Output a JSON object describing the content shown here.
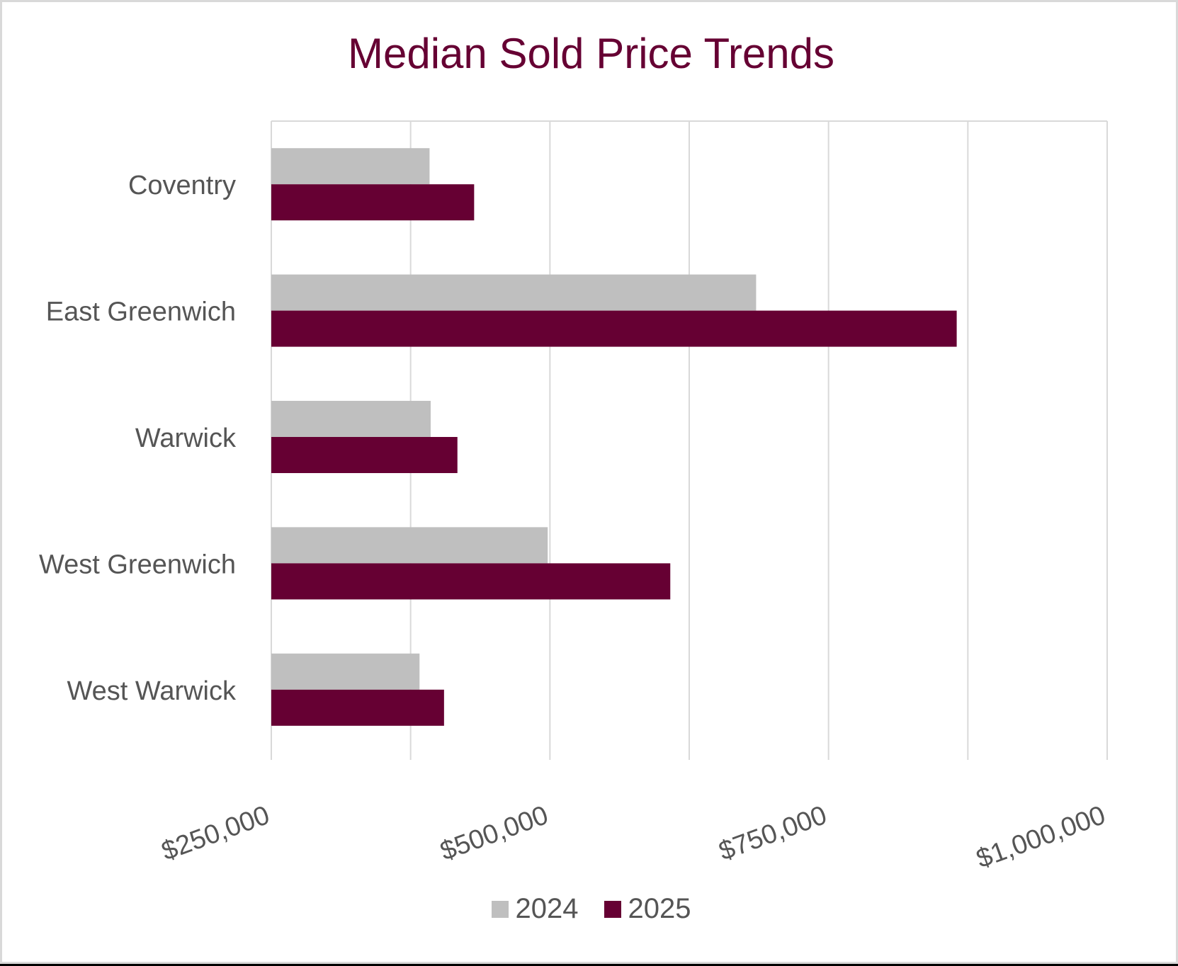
{
  "chart_data": {
    "type": "bar",
    "orientation": "horizontal",
    "title": "Median Sold Price Trends",
    "xlabel": "",
    "ylabel": "",
    "categories": [
      "Coventry",
      "East Greenwich",
      "Warwick",
      "West Greenwich",
      "West Warwick"
    ],
    "series": [
      {
        "name": "2024",
        "color": "#bfbfbf",
        "values": [
          392000,
          685000,
          393000,
          498000,
          383000
        ]
      },
      {
        "name": "2025",
        "color": "#660033",
        "values": [
          432000,
          865000,
          417000,
          608000,
          405000
        ]
      }
    ],
    "xlim": [
      250000,
      1000000
    ],
    "ticks": [
      250000,
      375000,
      500000,
      625000,
      750000,
      875000,
      1000000
    ],
    "tick_labels": [
      "$250,000",
      "$500,000",
      "$750,000",
      "$1,000,000"
    ],
    "grid": true,
    "legend_position": "bottom"
  },
  "colors": {
    "title": "#660033",
    "axis_text": "#555555",
    "grid": "#d9d9d9"
  }
}
